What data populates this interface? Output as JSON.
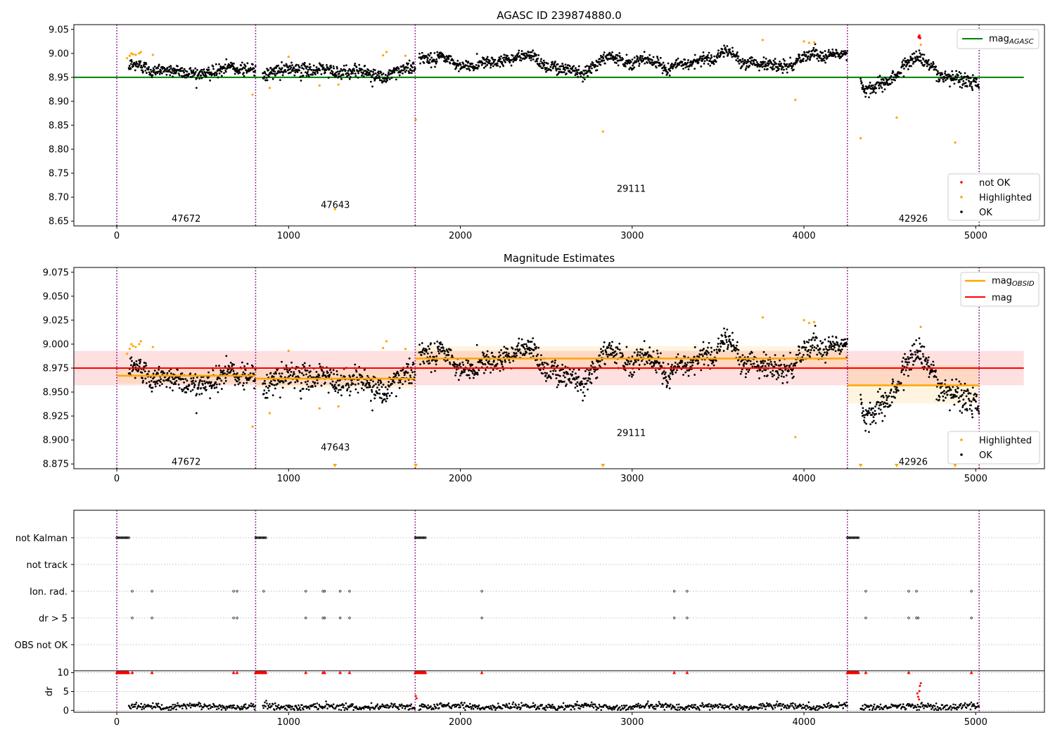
{
  "chart_data": [
    {
      "type": "scatter",
      "title": "AGASC ID 239874880.0",
      "xlim": [
        -250,
        5400
      ],
      "ylim": [
        8.64,
        9.06
      ],
      "x_ticks": [
        0,
        1000,
        2000,
        3000,
        4000,
        5000
      ],
      "y_ticks": [
        8.65,
        8.7,
        8.75,
        8.8,
        8.85,
        8.9,
        8.95,
        9.0,
        9.05
      ],
      "obsid_boundaries": [
        0,
        808,
        1737,
        4253,
        5020
      ],
      "obsid_labels": [
        {
          "text": "47672",
          "x": 404,
          "y": 8.655
        },
        {
          "text": "47643",
          "x": 1272,
          "y": 8.683
        },
        {
          "text": "29111",
          "x": 2995,
          "y": 8.717
        },
        {
          "text": "42926",
          "x": 4636,
          "y": 8.655
        }
      ],
      "reference_line": {
        "name": "mag_AGASC",
        "y": 8.95,
        "x_range": [
          -250,
          5280
        ],
        "color": "#008000"
      },
      "series_segments": [
        {
          "x_start": 70,
          "x_end": 808,
          "level": 8.967,
          "noise": 0.012,
          "wave": 0.004
        },
        {
          "x_start": 850,
          "x_end": 1737,
          "level": 8.963,
          "noise": 0.012,
          "wave": 0.006
        },
        {
          "x_start": 1760,
          "x_end": 4253,
          "level": 8.985,
          "noise": 0.011,
          "wave": 0.012
        },
        {
          "x_start": 4330,
          "x_end": 5020,
          "level": 8.955,
          "noise": 0.013,
          "wave": 0.014
        }
      ],
      "highlighted_points": [
        [
          60,
          8.99
        ],
        [
          75,
          8.995
        ],
        [
          85,
          9.0
        ],
        [
          95,
          8.998
        ],
        [
          110,
          8.997
        ],
        [
          130,
          9.0
        ],
        [
          140,
          9.003
        ],
        [
          210,
          8.997
        ],
        [
          790,
          8.914
        ],
        [
          890,
          8.928
        ],
        [
          1000,
          8.993
        ],
        [
          1180,
          8.933
        ],
        [
          1270,
          8.675
        ],
        [
          1290,
          8.935
        ],
        [
          1550,
          8.996
        ],
        [
          1570,
          9.003
        ],
        [
          1680,
          8.995
        ],
        [
          1740,
          8.862
        ],
        [
          2830,
          8.837
        ],
        [
          3760,
          9.028
        ],
        [
          3950,
          8.903
        ],
        [
          4000,
          9.025
        ],
        [
          4030,
          9.022
        ],
        [
          4060,
          9.023
        ],
        [
          4330,
          8.823
        ],
        [
          4540,
          8.866
        ],
        [
          4680,
          9.018
        ],
        [
          4880,
          8.814
        ]
      ],
      "not_ok_points": [
        [
          4668,
          9.034
        ],
        [
          4672,
          9.037
        ],
        [
          4676,
          9.032
        ]
      ],
      "legend": {
        "position": "right",
        "items": [
          {
            "label": "not OK",
            "color": "#ff0000"
          },
          {
            "label": "Highlighted",
            "color": "#ffa500"
          },
          {
            "label": "OK",
            "color": "#000000"
          }
        ]
      }
    },
    {
      "type": "scatter",
      "title": "Magnitude Estimates",
      "xlim": [
        -250,
        5400
      ],
      "ylim": [
        8.87,
        9.08
      ],
      "x_ticks": [
        0,
        1000,
        2000,
        3000,
        4000,
        5000
      ],
      "y_ticks": [
        8.875,
        8.9,
        8.925,
        8.95,
        8.975,
        9.0,
        9.025,
        9.05,
        9.075
      ],
      "obsid_boundaries": [
        0,
        808,
        1737,
        4253,
        5020
      ],
      "obsid_labels": [
        {
          "text": "47672",
          "x": 404,
          "y": 8.877
        },
        {
          "text": "47643",
          "x": 1272,
          "y": 8.892
        },
        {
          "text": "29111",
          "x": 2995,
          "y": 8.907
        },
        {
          "text": "42926",
          "x": 4636,
          "y": 8.877
        }
      ],
      "mag": {
        "name": "mag",
        "y": 8.975,
        "band": [
          8.957,
          8.993
        ],
        "x_range": [
          -250,
          5280
        ],
        "color": "#ff0000"
      },
      "mag_obsid": [
        {
          "x_range": [
            0,
            808
          ],
          "y": 8.967,
          "band": [
            8.959,
            8.975
          ]
        },
        {
          "x_range": [
            808,
            1737
          ],
          "y": 8.964,
          "band": [
            8.954,
            8.973
          ]
        },
        {
          "x_range": [
            1737,
            4253
          ],
          "y": 8.985,
          "band": [
            8.973,
            8.998
          ]
        },
        {
          "x_range": [
            4253,
            5020
          ],
          "y": 8.957,
          "band": [
            8.938,
            8.978
          ]
        }
      ],
      "mag_obsid_color": "#ffa500",
      "series_segments": [
        {
          "x_start": 70,
          "x_end": 808,
          "level": 8.967,
          "noise": 0.012,
          "wave": 0.004
        },
        {
          "x_start": 850,
          "x_end": 1737,
          "level": 8.963,
          "noise": 0.012,
          "wave": 0.006
        },
        {
          "x_start": 1760,
          "x_end": 4253,
          "level": 8.985,
          "noise": 0.011,
          "wave": 0.012
        },
        {
          "x_start": 4330,
          "x_end": 5020,
          "level": 8.955,
          "noise": 0.013,
          "wave": 0.014
        }
      ],
      "highlighted_points": [
        [
          60,
          8.99
        ],
        [
          75,
          8.995
        ],
        [
          85,
          9.0
        ],
        [
          95,
          8.998
        ],
        [
          110,
          8.997
        ],
        [
          130,
          9.0
        ],
        [
          140,
          9.003
        ],
        [
          210,
          8.997
        ],
        [
          790,
          8.914
        ],
        [
          890,
          8.928
        ],
        [
          1000,
          8.993
        ],
        [
          1180,
          8.933
        ],
        [
          1290,
          8.935
        ],
        [
          1550,
          8.996
        ],
        [
          1570,
          9.003
        ],
        [
          1680,
          8.995
        ],
        [
          3760,
          9.028
        ],
        [
          3950,
          8.903
        ],
        [
          4000,
          9.025
        ],
        [
          4030,
          9.022
        ],
        [
          4060,
          9.023
        ],
        [
          4680,
          9.018
        ]
      ],
      "clipped_markers_x": [
        1270,
        1740,
        2830,
        4330,
        4540,
        4880
      ],
      "legend": {
        "position": "right",
        "items": [
          {
            "label": "Highlighted",
            "color": "#ffa500"
          },
          {
            "label": "OK",
            "color": "#000000"
          }
        ]
      }
    },
    {
      "type": "scatter",
      "title": "",
      "xlim": [
        -250,
        5400
      ],
      "x_ticks": [
        0,
        1000,
        2000,
        3000,
        4000,
        5000
      ],
      "flag_rows": [
        "not Kalman",
        "not track",
        "Ion. rad.",
        "dr > 5",
        "OBS not OK"
      ],
      "flags": {
        "not Kalman": [
          [
            0,
            70
          ],
          [
            808,
            870
          ],
          [
            1737,
            1800
          ],
          [
            4253,
            4320
          ]
        ],
        "not track": [],
        "Ion. rad.": [
          90,
          205,
          680,
          700,
          855,
          1100,
          1200,
          1210,
          1300,
          1355,
          2125,
          3245,
          3320,
          4360,
          4610,
          4655,
          4975
        ],
        "dr > 5": [
          90,
          205,
          680,
          700,
          1100,
          1200,
          1210,
          1300,
          1355,
          2125,
          3245,
          3320,
          4360,
          4610,
          4655,
          4665,
          4975
        ],
        "OBS not OK": []
      },
      "dr_panel": {
        "ylabel": "dr",
        "y_ticks": [
          0,
          5,
          10
        ],
        "ylim": [
          -0.5,
          10.5
        ],
        "clip_value": 10,
        "clipped_x": [
          [
            0,
            70
          ],
          [
            808,
            870
          ],
          [
            1737,
            1800
          ],
          [
            4253,
            4320
          ]
        ],
        "clipped_single_x": [
          90,
          205,
          680,
          700,
          1100,
          1200,
          1210,
          1300,
          1355,
          2125,
          3245,
          3320,
          4360,
          4610,
          4975
        ],
        "red_points": [
          [
            1740,
            3.8
          ],
          [
            1745,
            3.2
          ],
          [
            4660,
            4.5
          ],
          [
            4665,
            3.6
          ],
          [
            4670,
            2.9
          ],
          [
            4675,
            6.5
          ],
          [
            4680,
            7.2
          ],
          [
            4672,
            5.1
          ]
        ],
        "baseline_segments": [
          [
            70,
            808
          ],
          [
            850,
            1737
          ],
          [
            1760,
            4253
          ],
          [
            4330,
            5020
          ]
        ],
        "baseline_level": 1.0
      }
    }
  ]
}
